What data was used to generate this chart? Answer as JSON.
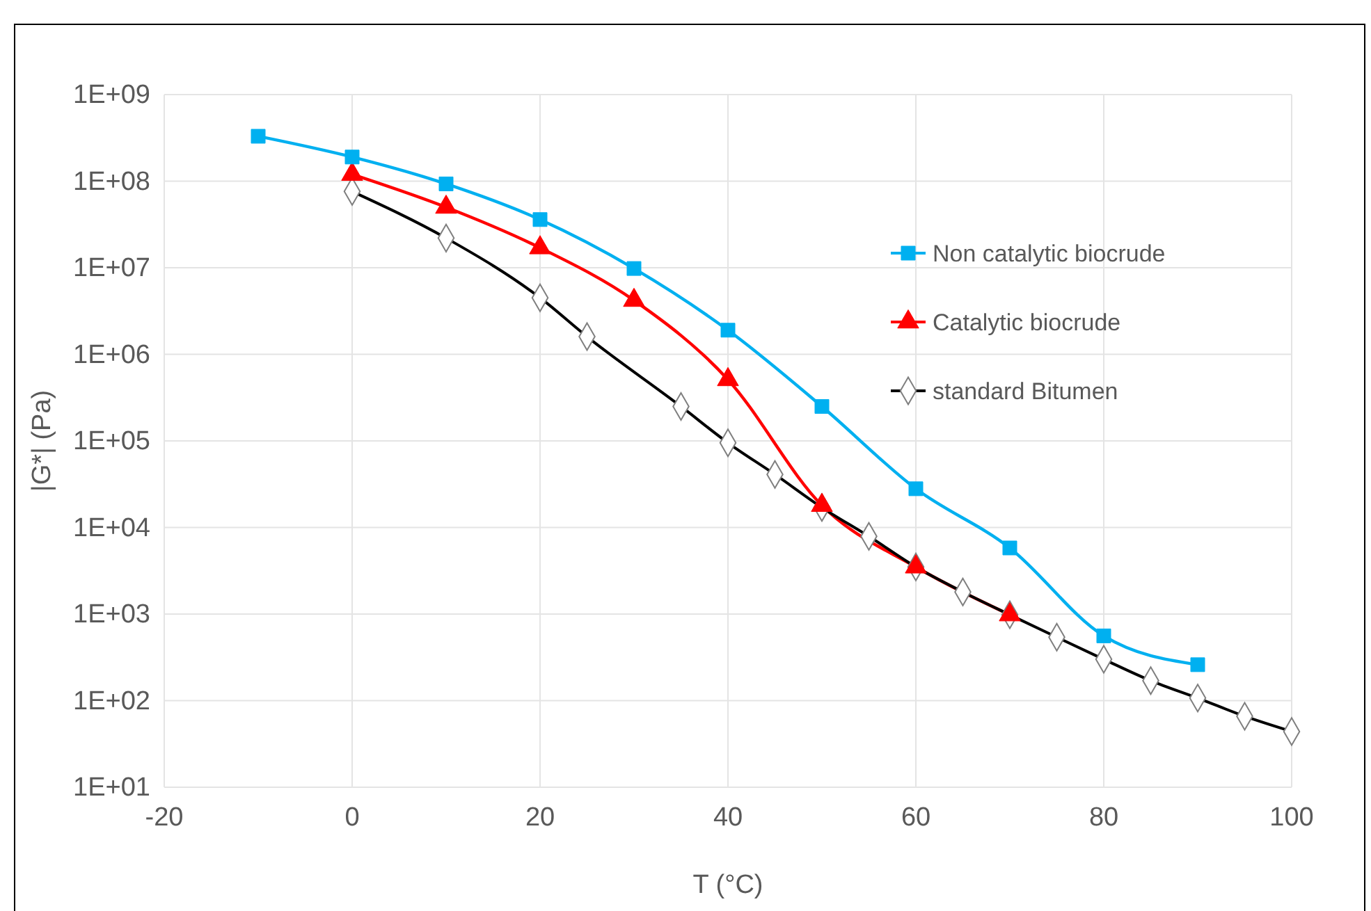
{
  "chart_data": {
    "type": "line",
    "xlabel": "T (°C)",
    "ylabel": "|G*| (Pa)",
    "log": "y",
    "grid": true,
    "legend": "top right",
    "xlim": [
      -20,
      100
    ],
    "xticks": [
      -20,
      0,
      20,
      40,
      60,
      80,
      100
    ],
    "ylim": [
      10,
      1000000000
    ],
    "yticks": [
      {
        "value": 10,
        "label": "1E+01"
      },
      {
        "value": 100,
        "label": "1E+02"
      },
      {
        "value": 1000,
        "label": "1E+03"
      },
      {
        "value": 10000,
        "label": "1E+04"
      },
      {
        "value": 100000,
        "label": "1E+05"
      },
      {
        "value": 1000000,
        "label": "1E+06"
      },
      {
        "value": 10000000,
        "label": "1E+07"
      },
      {
        "value": 100000000,
        "label": "1E+08"
      },
      {
        "value": 1000000000,
        "label": "1E+09"
      }
    ],
    "series": [
      {
        "name": "Non catalytic biocrude",
        "color": "#00b0f0",
        "marker": "square",
        "x": [
          -10,
          0,
          10,
          20,
          30,
          40,
          50,
          60,
          70,
          80,
          90
        ],
        "values": [
          330000000,
          190000000,
          93000000,
          36000000,
          9800000,
          1900000,
          250000,
          28000,
          5800,
          560,
          260
        ]
      },
      {
        "name": "Catalytic biocrude",
        "color": "#ff0000",
        "marker": "triangle",
        "x": [
          0,
          10,
          20,
          30,
          40,
          50,
          60,
          70
        ],
        "values": [
          120000000,
          50000000,
          17000000,
          4200000,
          510000,
          18000,
          3500,
          980
        ]
      },
      {
        "name": "standard Bitumen",
        "color": "#000000",
        "marker": "diamond",
        "x": [
          0,
          10,
          20,
          25,
          35,
          40,
          45,
          50,
          55,
          60,
          65,
          70,
          75,
          80,
          85,
          90,
          95,
          100
        ],
        "values": [
          76000000,
          22000000,
          4500000,
          1600000,
          250000,
          95000,
          41000,
          17000,
          7900,
          3500,
          1800,
          980,
          540,
          300,
          170,
          107,
          66,
          44
        ]
      }
    ]
  }
}
